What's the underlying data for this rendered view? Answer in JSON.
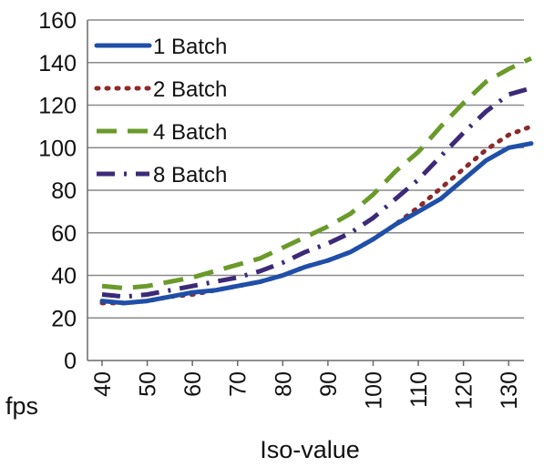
{
  "chart_data": {
    "type": "line",
    "title": "",
    "xlabel": "Iso-value",
    "ylabel": "fps",
    "x": [
      40,
      45,
      50,
      55,
      60,
      65,
      70,
      75,
      80,
      85,
      90,
      95,
      100,
      105,
      110,
      115,
      120,
      125,
      130,
      135
    ],
    "x_ticks": [
      "40",
      "50",
      "60",
      "70",
      "80",
      "90",
      "100",
      "110",
      "120",
      "130"
    ],
    "xlim": [
      40,
      135
    ],
    "ylim": [
      0,
      160
    ],
    "y_ticks": [
      "0",
      "20",
      "40",
      "60",
      "80",
      "100",
      "120",
      "140",
      "160"
    ],
    "grid": "horizontal",
    "legend_position": "top-left",
    "series": [
      {
        "name": "1 Batch",
        "color": "#1f4fa8",
        "dash": "solid",
        "values": [
          28,
          27,
          28,
          30,
          32,
          33,
          35,
          37,
          40,
          44,
          47,
          51,
          57,
          64,
          70,
          76,
          85,
          94,
          100,
          102
        ]
      },
      {
        "name": "2 Batch",
        "color": "#8b2a2a",
        "dash": "dotted",
        "values": [
          27,
          27,
          28,
          30,
          31,
          33,
          35,
          37,
          40,
          44,
          47,
          51,
          57,
          64,
          72,
          81,
          90,
          99,
          106,
          110
        ]
      },
      {
        "name": "4 Batch",
        "color": "#6a9a2a",
        "dash": "dashed",
        "values": [
          35,
          34,
          35,
          37,
          39,
          42,
          45,
          48,
          53,
          58,
          63,
          69,
          78,
          89,
          98,
          110,
          121,
          131,
          137,
          142
        ]
      },
      {
        "name": "8 Batch",
        "color": "#3c2a78",
        "dash": "dashdot",
        "values": [
          31,
          30,
          31,
          33,
          35,
          37,
          39,
          42,
          46,
          51,
          55,
          60,
          67,
          76,
          85,
          96,
          107,
          117,
          125,
          128
        ]
      }
    ]
  }
}
